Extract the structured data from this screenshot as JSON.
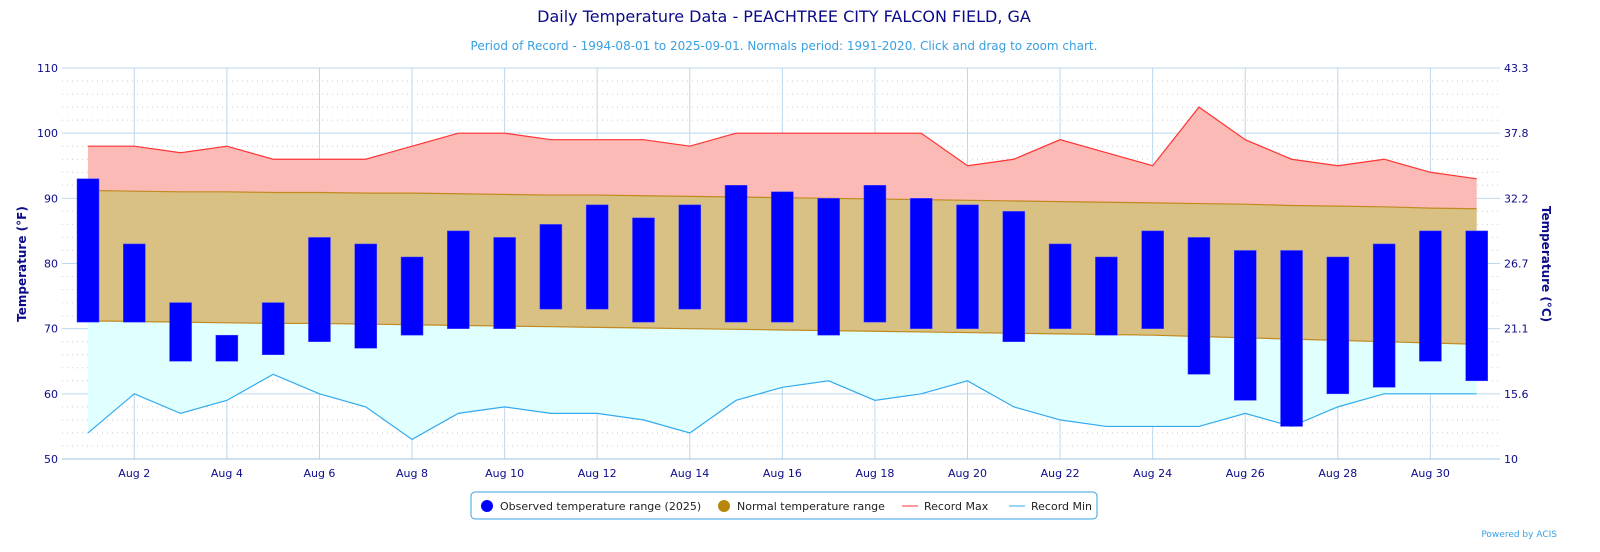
{
  "chart_data": {
    "type": "bar",
    "title": "Daily Temperature Data - PEACHTREE CITY FALCON FIELD, GA",
    "subtitle": "Period of Record - 1994-08-01 to 2025-09-01. Normals period: 1991-2020. Click and drag to zoom chart.",
    "ylabel": "Temperature (°F)",
    "ylabel_right": "Temperature (°C)",
    "ylim": [
      50,
      110
    ],
    "yticks": [
      50,
      60,
      70,
      80,
      90,
      100,
      110
    ],
    "yticks_right": [
      "10",
      "15.6",
      "21.1",
      "26.7",
      "32.2",
      "37.8",
      "43.3"
    ],
    "x": [
      1,
      2,
      3,
      4,
      5,
      6,
      7,
      8,
      9,
      10,
      11,
      12,
      13,
      14,
      15,
      16,
      17,
      18,
      19,
      20,
      21,
      22,
      23,
      24,
      25,
      26,
      27,
      28,
      29,
      30,
      31
    ],
    "xticks": [
      "Aug 2",
      "Aug 4",
      "Aug 6",
      "Aug 8",
      "Aug 10",
      "Aug 12",
      "Aug 14",
      "Aug 16",
      "Aug 18",
      "Aug 20",
      "Aug 22",
      "Aug 24",
      "Aug 26",
      "Aug 28",
      "Aug 30"
    ],
    "series": [
      {
        "name": "Observed temperature range (2025)",
        "color": "#0000ff",
        "low": [
          71,
          71,
          65,
          65,
          66,
          68,
          67,
          69,
          70,
          70,
          73,
          73,
          71,
          73,
          71,
          71,
          69,
          71,
          70,
          70,
          68,
          70,
          69,
          70,
          63,
          59,
          55,
          60,
          61,
          65,
          62
        ],
        "high": [
          93,
          83,
          74,
          69,
          74,
          84,
          83,
          81,
          85,
          84,
          86,
          89,
          87,
          89,
          92,
          91,
          90,
          92,
          90,
          89,
          88,
          83,
          81,
          85,
          84,
          82,
          82,
          81,
          83,
          85,
          85
        ]
      },
      {
        "name": "Normal temperature range",
        "color": "#b8860b",
        "low": [
          71.2,
          71.1,
          71.0,
          70.9,
          70.8,
          70.8,
          70.7,
          70.6,
          70.5,
          70.4,
          70.3,
          70.2,
          70.1,
          70.0,
          69.9,
          69.8,
          69.7,
          69.6,
          69.5,
          69.4,
          69.3,
          69.2,
          69.1,
          69.0,
          68.8,
          68.6,
          68.4,
          68.2,
          68.0,
          67.8,
          67.6
        ],
        "high": [
          91.2,
          91.1,
          91.0,
          91.0,
          90.9,
          90.9,
          90.8,
          90.8,
          90.7,
          90.6,
          90.5,
          90.5,
          90.4,
          90.3,
          90.2,
          90.1,
          90.0,
          89.9,
          89.8,
          89.7,
          89.6,
          89.5,
          89.4,
          89.3,
          89.2,
          89.1,
          88.9,
          88.8,
          88.7,
          88.5,
          88.4
        ]
      },
      {
        "name": "Record Max",
        "color": "#ff3333",
        "values": [
          98,
          98,
          97,
          98,
          96,
          96,
          96,
          98,
          100,
          100,
          99,
          99,
          99,
          98,
          100,
          100,
          100,
          100,
          100,
          95,
          96,
          99,
          97,
          95,
          104,
          99,
          96,
          95,
          96,
          94,
          93
        ]
      },
      {
        "name": "Record Min",
        "color": "#33aaee",
        "values": [
          54,
          60,
          57,
          59,
          63,
          60,
          58,
          53,
          57,
          58,
          57,
          57,
          56,
          54,
          59,
          61,
          62,
          59,
          60,
          62,
          58,
          56,
          55,
          55,
          55,
          57,
          55,
          58,
          60,
          60,
          60
        ]
      }
    ],
    "legend": "bottom-center",
    "grid": true,
    "credit": "Powered by ACIS"
  }
}
